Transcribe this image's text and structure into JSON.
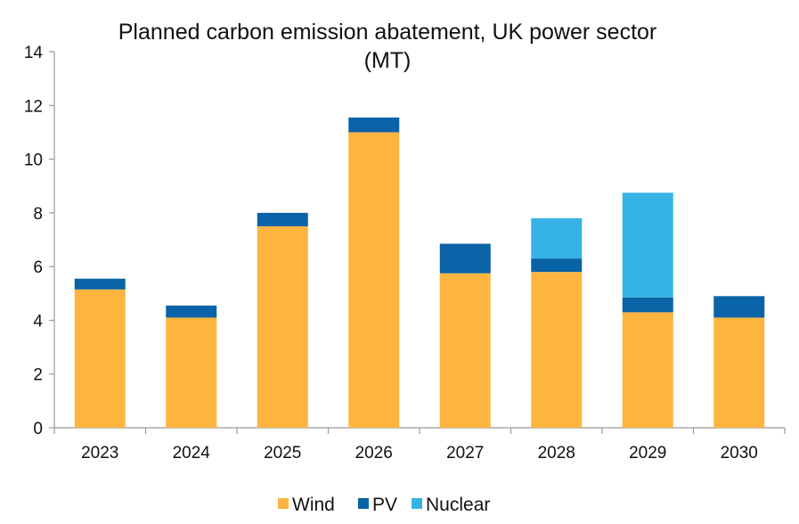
{
  "chart_data": {
    "type": "bar",
    "stacked": true,
    "title_lines": [
      "Planned carbon emission abatement, UK power sector",
      "(MT)"
    ],
    "xlabel": "",
    "ylabel": "",
    "categories": [
      "2023",
      "2024",
      "2025",
      "2026",
      "2027",
      "2028",
      "2029",
      "2030"
    ],
    "series": [
      {
        "name": "Wind",
        "color": "#FDB53F",
        "values": [
          5.15,
          4.1,
          7.5,
          11.0,
          5.75,
          5.8,
          4.3,
          4.1
        ]
      },
      {
        "name": "PV",
        "color": "#0A63A6",
        "values": [
          0.4,
          0.45,
          0.5,
          0.55,
          1.1,
          0.5,
          0.55,
          0.8
        ]
      },
      {
        "name": "Nuclear",
        "color": "#35B3E6",
        "values": [
          0,
          0,
          0,
          0,
          0,
          1.5,
          3.9,
          0
        ]
      }
    ],
    "ylim": [
      0,
      14
    ],
    "yticks": [
      0,
      2,
      4,
      6,
      8,
      10,
      12,
      14
    ],
    "grid": false,
    "legend_position": "bottom-center"
  }
}
